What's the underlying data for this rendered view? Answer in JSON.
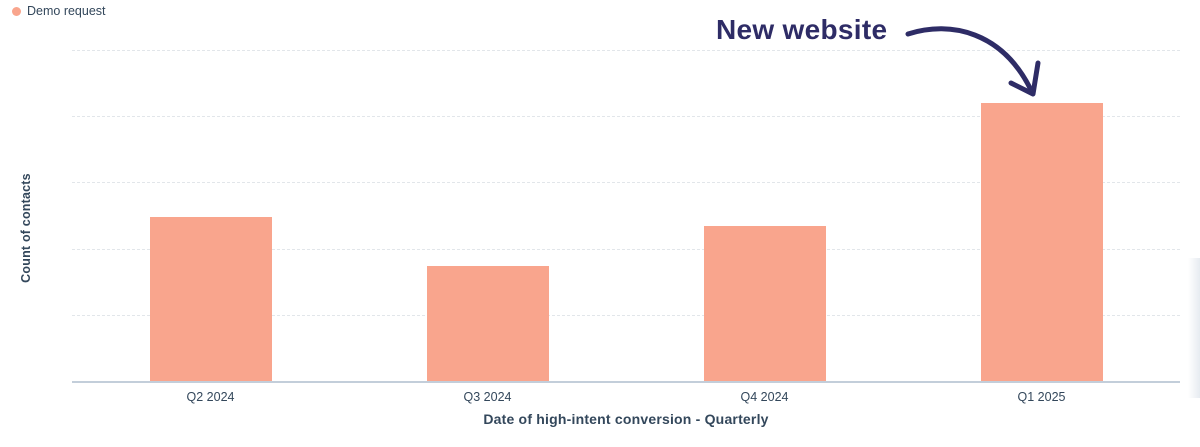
{
  "legend": {
    "items": [
      {
        "label": "Demo request",
        "color": "#f9a58d"
      }
    ]
  },
  "annotation": {
    "text": "New website",
    "color": "#2e2c66"
  },
  "chart_data": {
    "type": "bar",
    "title": "",
    "categories": [
      "Q2 2024",
      "Q3 2024",
      "Q4 2024",
      "Q1 2025"
    ],
    "series": [
      {
        "name": "Demo request",
        "color": "#f9a58d",
        "values": [
          2.48,
          1.73,
          2.34,
          4.2
        ]
      }
    ],
    "values_pct_of_max": [
      59,
      41,
      56,
      100
    ],
    "xlabel": "Date of high-intent conversion - Quarterly",
    "ylabel": "Count of contacts",
    "ylim": [
      0,
      5
    ],
    "y_tick_labels_visible": false,
    "grid": "horizontal-dashed",
    "legend_position": "top-left",
    "annotated_bar": "Q1 2025"
  },
  "colors": {
    "bar_fill": "#f9a58d",
    "axis_text": "#33475b",
    "axis_line": "#c3ceda",
    "gridline": "#e2e6ea",
    "annotation": "#2e2c66",
    "background": "#ffffff"
  }
}
